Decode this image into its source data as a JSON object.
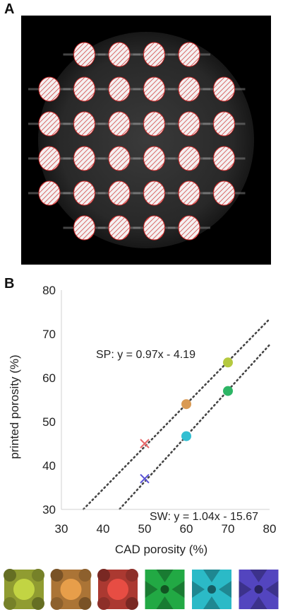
{
  "panels": {
    "a_label": "A",
    "b_label": "B"
  },
  "micrograph": {
    "background_color": "#000000",
    "pore_fill": "#f4f1f1",
    "hatch_color": "#cc2a2a",
    "pore_rows": [
      {
        "cols": [
          2,
          3,
          4,
          5
        ]
      },
      {
        "cols": [
          1,
          2,
          3,
          4,
          5,
          6
        ]
      },
      {
        "cols": [
          1,
          2,
          3,
          4,
          5,
          6
        ]
      },
      {
        "cols": [
          1,
          2,
          3,
          4,
          5,
          6
        ]
      },
      {
        "cols": [
          1,
          2,
          3,
          4,
          5,
          6
        ]
      },
      {
        "cols": [
          2,
          3,
          4,
          5
        ]
      }
    ]
  },
  "chart_data": {
    "type": "scatter",
    "xlabel": "CAD porosity (%)",
    "ylabel": "printed porosity (%)",
    "xlim": [
      30,
      80
    ],
    "ylim": [
      30,
      80
    ],
    "xticks": [
      30,
      40,
      50,
      60,
      70,
      80
    ],
    "yticks": [
      30,
      40,
      50,
      60,
      70,
      80
    ],
    "grid": false,
    "points": [
      {
        "x": 50,
        "y": 45,
        "marker": "x",
        "color": "#e8696a"
      },
      {
        "x": 60,
        "y": 54,
        "marker": "circle",
        "color": "#d99a54"
      },
      {
        "x": 70,
        "y": 63.5,
        "marker": "circle",
        "color": "#b5c93f"
      },
      {
        "x": 50,
        "y": 37,
        "marker": "x",
        "color": "#5a52d6"
      },
      {
        "x": 60,
        "y": 46.7,
        "marker": "circle",
        "color": "#33bfd2"
      },
      {
        "x": 70,
        "y": 57,
        "marker": "circle",
        "color": "#2db565"
      }
    ],
    "fit_lines": [
      {
        "label": "SP: y = 0.97x - 4.19",
        "slope": 0.97,
        "intercept": -4.19,
        "x_range": [
          35.3,
          80
        ]
      },
      {
        "label": "SW: y = 1.04x - 15.67",
        "slope": 1.04,
        "intercept": -15.67,
        "x_range": [
          44,
          80
        ]
      }
    ]
  },
  "unit_cells": [
    {
      "color": "#a9b83a",
      "shape": "sp"
    },
    {
      "color": "#c98940",
      "shape": "sp"
    },
    {
      "color": "#c9433a",
      "shape": "sp"
    },
    {
      "color": "#1f9a3e",
      "shape": "sw"
    },
    {
      "color": "#27a9b5",
      "shape": "sw"
    },
    {
      "color": "#4b3fae",
      "shape": "sw"
    }
  ]
}
